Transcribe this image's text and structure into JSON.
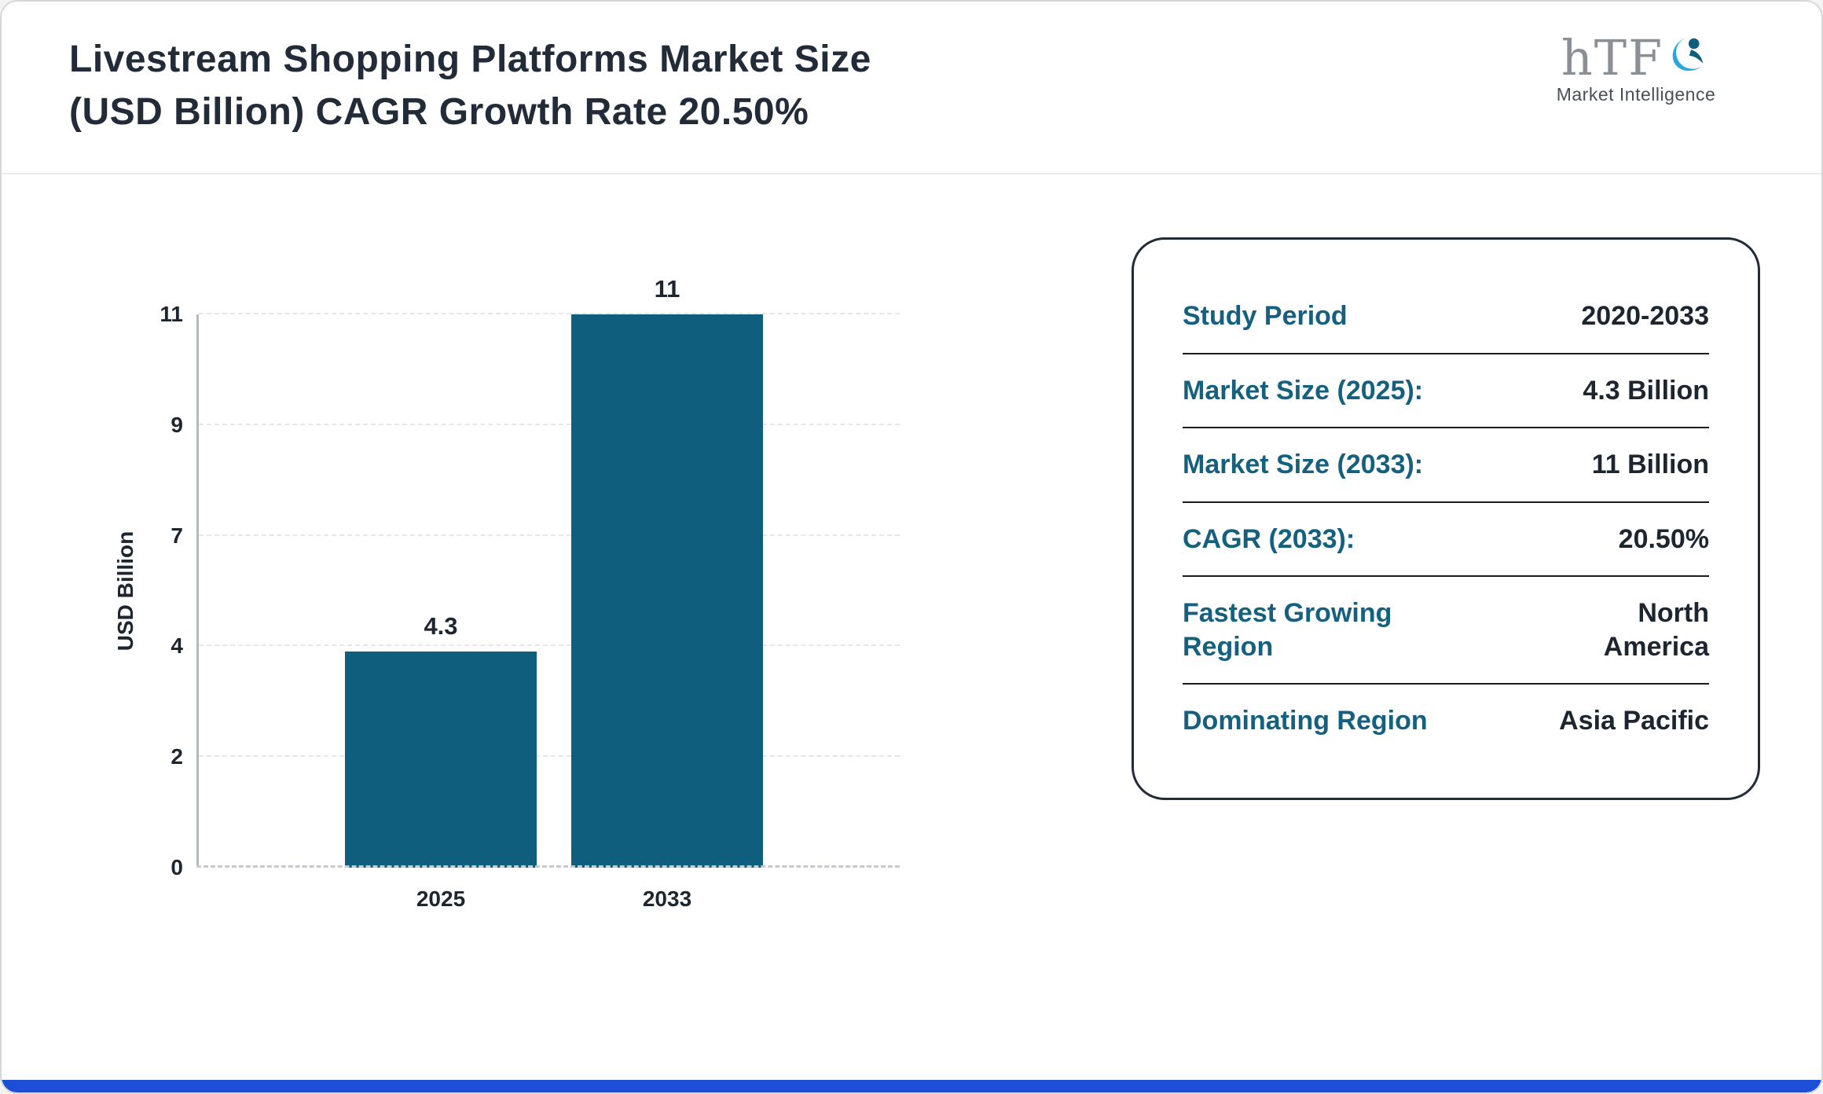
{
  "header": {
    "title_line1": "Livestream Shopping Platforms Market Size",
    "title_line2": "(USD Billion) CAGR Growth Rate 20.50%",
    "logo_text": "hTF",
    "logo_subtext": "Market Intelligence"
  },
  "chart_data": {
    "type": "bar",
    "title": "Livestream Shopping Platforms Market Size (USD Billion) CAGR Growth Rate 20.50%",
    "categories": [
      "2025",
      "2033"
    ],
    "values": [
      4.3,
      11
    ],
    "bar_labels": [
      "4.3",
      "11"
    ],
    "xlabel": "",
    "ylabel": "USD Billion",
    "ylim": [
      0,
      11
    ],
    "tick_labels": [
      "0",
      "2",
      "4",
      "7",
      "9",
      "11"
    ],
    "grid": true,
    "legend": "none"
  },
  "card": {
    "rows": [
      {
        "label": "Study Period",
        "value": "2020-2033"
      },
      {
        "label": "Market Size (2025):",
        "value": "4.3 Billion"
      },
      {
        "label": "Market Size (2033):",
        "value": "11 Billion"
      },
      {
        "label": "CAGR (2033):",
        "value": "20.50%"
      },
      {
        "label": "Fastest Growing Region",
        "value": "North America"
      },
      {
        "label": "Dominating Region",
        "value": "Asia Pacific"
      }
    ]
  },
  "colors": {
    "bar": "#0f5e7e",
    "label_teal": "#15607f",
    "accent_footer": "#1d4ed8",
    "title_text": "#222b38"
  }
}
